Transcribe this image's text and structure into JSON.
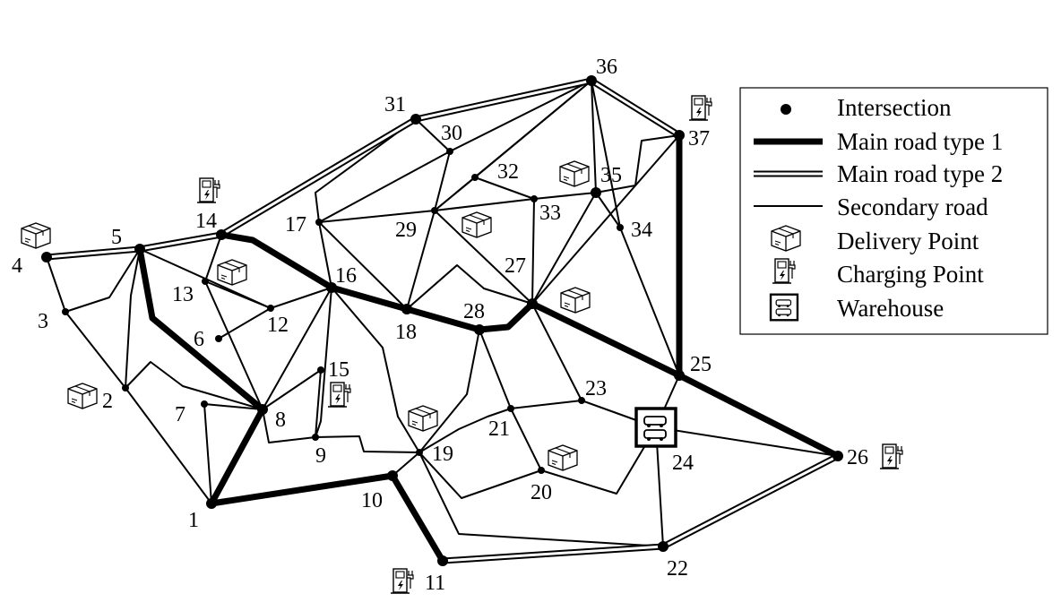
{
  "nodes": [
    {
      "id": "1",
      "label": "1",
      "type": "major"
    },
    {
      "id": "2",
      "label": "2",
      "type": "minor",
      "icons": [
        "delivery-point"
      ]
    },
    {
      "id": "3",
      "label": "3",
      "type": "minor"
    },
    {
      "id": "4",
      "label": "4",
      "type": "major",
      "icons": [
        "delivery-point"
      ]
    },
    {
      "id": "5",
      "label": "5",
      "type": "major"
    },
    {
      "id": "6",
      "label": "6",
      "type": "minor"
    },
    {
      "id": "7",
      "label": "7",
      "type": "minor"
    },
    {
      "id": "8",
      "label": "8",
      "type": "major"
    },
    {
      "id": "9",
      "label": "9",
      "type": "minor"
    },
    {
      "id": "10",
      "label": "10",
      "type": "major"
    },
    {
      "id": "11",
      "label": "11",
      "type": "major",
      "icons": [
        "charging-point"
      ]
    },
    {
      "id": "12",
      "label": "12",
      "type": "minor"
    },
    {
      "id": "13",
      "label": "13",
      "type": "minor",
      "icons": [
        "delivery-point"
      ]
    },
    {
      "id": "14",
      "label": "14",
      "type": "major",
      "icons": [
        "charging-point"
      ]
    },
    {
      "id": "15",
      "label": "15",
      "type": "minor",
      "icons": [
        "charging-point"
      ]
    },
    {
      "id": "16",
      "label": "16",
      "type": "major"
    },
    {
      "id": "17",
      "label": "17",
      "type": "minor"
    },
    {
      "id": "18",
      "label": "18",
      "type": "major"
    },
    {
      "id": "19",
      "label": "19",
      "type": "minor",
      "icons": [
        "delivery-point"
      ]
    },
    {
      "id": "20",
      "label": "20",
      "type": "minor",
      "icons": [
        "delivery-point"
      ]
    },
    {
      "id": "21",
      "label": "21",
      "type": "minor"
    },
    {
      "id": "22",
      "label": "22",
      "type": "major"
    },
    {
      "id": "23",
      "label": "23",
      "type": "minor"
    },
    {
      "id": "24",
      "label": "24",
      "type": "warehouse"
    },
    {
      "id": "25",
      "label": "25",
      "type": "major"
    },
    {
      "id": "26",
      "label": "26",
      "type": "major",
      "icons": [
        "charging-point"
      ]
    },
    {
      "id": "27",
      "label": "27",
      "type": "major",
      "icons": [
        "delivery-point"
      ]
    },
    {
      "id": "28",
      "label": "28",
      "type": "major"
    },
    {
      "id": "29",
      "label": "29",
      "type": "minor",
      "icons": [
        "delivery-point"
      ]
    },
    {
      "id": "30",
      "label": "30",
      "type": "minor"
    },
    {
      "id": "31",
      "label": "31",
      "type": "major"
    },
    {
      "id": "32",
      "label": "32",
      "type": "minor"
    },
    {
      "id": "33",
      "label": "33",
      "type": "minor"
    },
    {
      "id": "34",
      "label": "34",
      "type": "minor"
    },
    {
      "id": "35",
      "label": "35",
      "type": "major",
      "icons": [
        "delivery-point"
      ]
    },
    {
      "id": "36",
      "label": "36",
      "type": "major"
    },
    {
      "id": "37",
      "label": "37",
      "type": "major",
      "icons": [
        "charging-point"
      ]
    }
  ],
  "edges": [
    {
      "from": "1",
      "to": "8",
      "road": "main-1"
    },
    {
      "from": "1",
      "to": "10",
      "road": "main-1"
    },
    {
      "from": "10",
      "to": "11",
      "road": "main-1"
    },
    {
      "from": "8",
      "to": "5",
      "road": "main-1"
    },
    {
      "from": "14",
      "to": "16",
      "road": "main-1"
    },
    {
      "from": "16",
      "to": "18",
      "road": "main-1"
    },
    {
      "from": "18",
      "to": "28",
      "road": "main-1"
    },
    {
      "from": "28",
      "to": "27",
      "road": "main-1"
    },
    {
      "from": "27",
      "to": "25",
      "road": "main-1"
    },
    {
      "from": "25",
      "to": "26",
      "road": "main-1"
    },
    {
      "from": "25",
      "to": "37",
      "road": "main-1"
    },
    {
      "from": "4",
      "to": "5",
      "road": "main-2"
    },
    {
      "from": "5",
      "to": "14",
      "road": "main-2"
    },
    {
      "from": "14",
      "to": "31",
      "road": "main-2"
    },
    {
      "from": "31",
      "to": "36",
      "road": "main-2"
    },
    {
      "from": "36",
      "to": "37",
      "road": "main-2"
    },
    {
      "from": "11",
      "to": "22",
      "road": "main-2"
    },
    {
      "from": "22",
      "to": "26",
      "road": "main-2"
    },
    {
      "from": "4",
      "to": "3",
      "road": "secondary"
    },
    {
      "from": "3",
      "to": "5",
      "road": "secondary"
    },
    {
      "from": "3",
      "to": "2",
      "road": "secondary"
    },
    {
      "from": "5",
      "to": "2",
      "road": "secondary"
    },
    {
      "from": "2",
      "to": "1",
      "road": "secondary"
    },
    {
      "from": "2",
      "to": "8",
      "road": "secondary"
    },
    {
      "from": "5",
      "to": "12",
      "road": "secondary"
    },
    {
      "from": "14",
      "to": "13",
      "road": "secondary"
    },
    {
      "from": "13",
      "to": "8",
      "road": "secondary"
    },
    {
      "from": "13",
      "to": "12",
      "road": "secondary"
    },
    {
      "from": "12",
      "to": "6",
      "road": "secondary"
    },
    {
      "from": "12",
      "to": "16",
      "road": "secondary"
    },
    {
      "from": "7",
      "to": "1",
      "road": "secondary"
    },
    {
      "from": "7",
      "to": "8",
      "road": "secondary"
    },
    {
      "from": "8",
      "to": "16",
      "road": "secondary"
    },
    {
      "from": "8",
      "to": "15",
      "road": "secondary"
    },
    {
      "from": "8",
      "to": "9",
      "road": "secondary"
    },
    {
      "from": "9",
      "to": "15",
      "road": "secondary"
    },
    {
      "from": "9",
      "to": "19",
      "road": "secondary"
    },
    {
      "from": "9",
      "to": "16",
      "road": "secondary"
    },
    {
      "from": "10",
      "to": "19",
      "road": "secondary"
    },
    {
      "from": "16",
      "to": "19",
      "road": "secondary"
    },
    {
      "from": "17",
      "to": "16",
      "road": "secondary"
    },
    {
      "from": "17",
      "to": "18",
      "road": "secondary"
    },
    {
      "from": "17",
      "to": "29",
      "road": "secondary"
    },
    {
      "from": "17",
      "to": "30",
      "road": "secondary"
    },
    {
      "from": "17",
      "to": "31",
      "road": "secondary"
    },
    {
      "from": "31",
      "to": "30",
      "road": "secondary"
    },
    {
      "from": "30",
      "to": "36",
      "road": "secondary"
    },
    {
      "from": "30",
      "to": "29",
      "road": "secondary"
    },
    {
      "from": "29",
      "to": "18",
      "road": "secondary"
    },
    {
      "from": "29",
      "to": "32",
      "road": "secondary"
    },
    {
      "from": "29",
      "to": "33",
      "road": "secondary"
    },
    {
      "from": "29",
      "to": "27",
      "road": "secondary"
    },
    {
      "from": "29",
      "to": "36",
      "road": "secondary"
    },
    {
      "from": "32",
      "to": "33",
      "road": "secondary"
    },
    {
      "from": "32",
      "to": "36",
      "road": "secondary"
    },
    {
      "from": "33",
      "to": "35",
      "road": "secondary"
    },
    {
      "from": "33",
      "to": "27",
      "road": "secondary"
    },
    {
      "from": "35",
      "to": "36",
      "road": "secondary"
    },
    {
      "from": "35",
      "to": "37",
      "road": "secondary"
    },
    {
      "from": "35",
      "to": "27",
      "road": "secondary"
    },
    {
      "from": "35",
      "to": "34",
      "road": "secondary"
    },
    {
      "from": "36",
      "to": "34",
      "road": "secondary"
    },
    {
      "from": "34",
      "to": "25",
      "road": "secondary"
    },
    {
      "from": "37",
      "to": "27",
      "road": "secondary"
    },
    {
      "from": "18",
      "to": "27",
      "road": "secondary"
    },
    {
      "from": "28",
      "to": "19",
      "road": "secondary"
    },
    {
      "from": "28",
      "to": "21",
      "road": "secondary"
    },
    {
      "from": "27",
      "to": "23",
      "road": "secondary"
    },
    {
      "from": "19",
      "to": "21",
      "road": "secondary"
    },
    {
      "from": "19",
      "to": "20",
      "road": "secondary"
    },
    {
      "from": "19",
      "to": "22",
      "road": "secondary"
    },
    {
      "from": "21",
      "to": "20",
      "road": "secondary"
    },
    {
      "from": "21",
      "to": "23",
      "road": "secondary"
    },
    {
      "from": "23",
      "to": "24",
      "road": "secondary"
    },
    {
      "from": "20",
      "to": "24",
      "road": "secondary"
    },
    {
      "from": "24",
      "to": "25",
      "road": "secondary"
    },
    {
      "from": "24",
      "to": "26",
      "road": "secondary"
    },
    {
      "from": "24",
      "to": "22",
      "road": "secondary"
    }
  ],
  "legend": [
    {
      "symbol": "intersection-dot",
      "label": "Intersection"
    },
    {
      "symbol": "main-road-1-line",
      "label": "Main road type 1"
    },
    {
      "symbol": "main-road-2-line",
      "label": "Main road type 2"
    },
    {
      "symbol": "secondary-road-line",
      "label": "Secondary road"
    },
    {
      "symbol": "delivery-point-icon",
      "label": "Delivery Point"
    },
    {
      "symbol": "charging-point-icon",
      "label": "Charging Point"
    },
    {
      "symbol": "warehouse-icon",
      "label": "Warehouse"
    }
  ],
  "colors": {
    "ink": "#000000",
    "background": "#ffffff"
  }
}
